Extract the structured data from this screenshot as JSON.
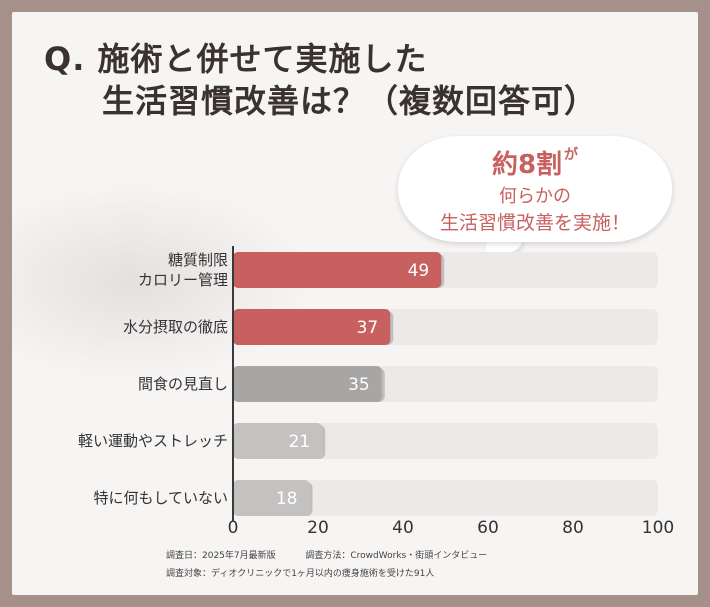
{
  "title": {
    "line1": "Q. 施術と併せて実施した",
    "line2": "生活習慣改善は？（複数回答可）"
  },
  "callout": {
    "highlight": "約8割",
    "particle": "が",
    "line2": "何らかの",
    "line3": "生活習慣改善を実施！"
  },
  "footer": {
    "line1a": "調査日：2025年7月最新版",
    "line1b": "調査方法：CrowdWorks・街頭インタビュー",
    "line2": "調査対象：ディオクリニックで1ヶ月以内の痩身施術を受けた91人"
  },
  "colors": {
    "highlight": "#c86060",
    "mid_gray": "#a8a6a5",
    "light_gray": "#c4c2c1",
    "track": "#ece9e8",
    "axis": "#3a3a3a"
  },
  "chart_data": {
    "type": "bar",
    "orientation": "horizontal",
    "categories": [
      "糖質制限\nカロリー管理",
      "水分摂取の徹底",
      "間食の見直し",
      "軽い運動やストレッチ",
      "特に何もしていない"
    ],
    "values": [
      49,
      37,
      35,
      21,
      18
    ],
    "xlim": [
      0,
      100
    ],
    "xticks": [
      0,
      20,
      40,
      60,
      80,
      100
    ],
    "grid": false,
    "legend": "none"
  }
}
